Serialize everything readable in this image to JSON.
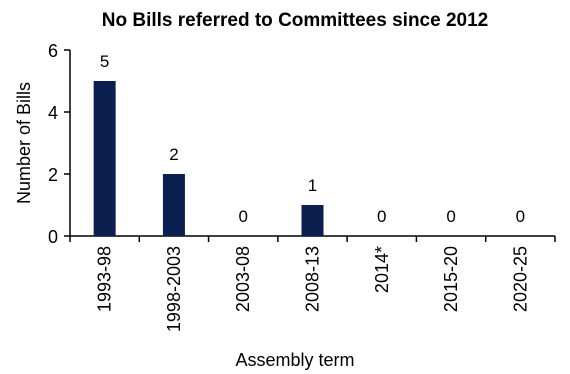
{
  "chart_data": {
    "type": "bar",
    "title": "No Bills referred to Committees since 2012",
    "xlabel": "Assembly term",
    "ylabel": "Number of Bills",
    "categories": [
      "1993-98",
      "1998-2003",
      "2003-08",
      "2008-13",
      "2014*",
      "2015-20",
      "2020-25"
    ],
    "values": [
      5,
      2,
      0,
      1,
      0,
      0,
      0
    ],
    "data_labels": [
      "5",
      "2",
      "0",
      "1",
      "0",
      "0",
      "0"
    ],
    "ylim": [
      0,
      6
    ],
    "yticks": [
      "0",
      "2",
      "4",
      "6"
    ],
    "grid": false,
    "legend": "none",
    "bar_color": "#0c2050"
  }
}
